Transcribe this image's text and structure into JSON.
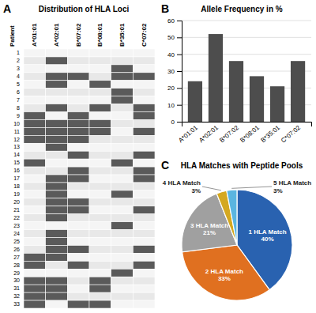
{
  "chart_data": [
    {
      "type": "heatmap",
      "title": "Distribution of HLA Loci",
      "annotations": [
        "A"
      ],
      "categories": [
        "A*01:01",
        "A*02:01",
        "B*07:02",
        "B*08:01",
        "B*35:01",
        "C*07:02"
      ],
      "ylabel": "Patient",
      "rows": [
        "1",
        "2",
        "3",
        "4",
        "5",
        "6",
        "7",
        "8",
        "9",
        "10",
        "11",
        "12",
        "13",
        "14",
        "15",
        "16",
        "17",
        "18",
        "19",
        "20",
        "21",
        "22",
        "23",
        "24",
        "25",
        "26",
        "27",
        "28",
        "29",
        "30",
        "31",
        "32",
        "33"
      ],
      "cells": [
        [
          0,
          0,
          0,
          0,
          0,
          0
        ],
        [
          0,
          1,
          0,
          0,
          0,
          0
        ],
        [
          0,
          0,
          0,
          0,
          1,
          0
        ],
        [
          0,
          1,
          1,
          0,
          1,
          1
        ],
        [
          0,
          1,
          0,
          1,
          0,
          0
        ],
        [
          0,
          0,
          0,
          0,
          1,
          0
        ],
        [
          0,
          0,
          0,
          0,
          1,
          0
        ],
        [
          0,
          1,
          0,
          1,
          0,
          1
        ],
        [
          1,
          0,
          1,
          0,
          0,
          1
        ],
        [
          1,
          1,
          1,
          1,
          0,
          0
        ],
        [
          1,
          1,
          1,
          1,
          0,
          1
        ],
        [
          1,
          1,
          1,
          0,
          0,
          0
        ],
        [
          0,
          1,
          0,
          0,
          0,
          0
        ],
        [
          0,
          0,
          1,
          0,
          0,
          1
        ],
        [
          1,
          0,
          0,
          0,
          1,
          0
        ],
        [
          0,
          0,
          1,
          0,
          0,
          1
        ],
        [
          0,
          1,
          1,
          0,
          0,
          1
        ],
        [
          0,
          1,
          0,
          0,
          0,
          0
        ],
        [
          0,
          1,
          0,
          0,
          1,
          0
        ],
        [
          0,
          1,
          1,
          0,
          0,
          0
        ],
        [
          0,
          1,
          1,
          0,
          0,
          1
        ],
        [
          0,
          1,
          0,
          0,
          0,
          0
        ],
        [
          0,
          0,
          0,
          0,
          1,
          0
        ],
        [
          0,
          1,
          0,
          0,
          0,
          0
        ],
        [
          0,
          1,
          0,
          0,
          0,
          0
        ],
        [
          0,
          1,
          1,
          0,
          0,
          1
        ],
        [
          1,
          1,
          0,
          0,
          0,
          0
        ],
        [
          1,
          0,
          1,
          0,
          0,
          1
        ],
        [
          0,
          0,
          0,
          0,
          1,
          0
        ],
        [
          1,
          1,
          0,
          1,
          0,
          0
        ],
        [
          1,
          1,
          0,
          1,
          0,
          0
        ],
        [
          1,
          1,
          0,
          0,
          0,
          0
        ],
        [
          1,
          0,
          1,
          1,
          0,
          0
        ]
      ],
      "color": "#5a5a5a"
    },
    {
      "type": "bar",
      "title": "Allele Frequency in %",
      "annotations": [
        "B"
      ],
      "categories": [
        "A*01:01",
        "A*02:01",
        "B*07:02",
        "B*08:01",
        "B*35:01",
        "C*07:02"
      ],
      "values": [
        24,
        52,
        36,
        27,
        21,
        36
      ],
      "color": "#4d4d4d",
      "ylim": [
        0,
        60
      ],
      "yticks": [
        0,
        10,
        20,
        30,
        40,
        50,
        60
      ],
      "grid": true
    },
    {
      "type": "pie",
      "title": "HLA Matches with Peptide Pools",
      "annotations": [
        "C"
      ],
      "categories": [
        "1 HLA Match",
        "2 HLA Match",
        "3 HLA Match",
        "4 HLA Match",
        "5 HLA Match"
      ],
      "values": [
        40,
        33,
        21,
        3,
        3
      ],
      "value_labels": [
        "40%",
        "33%",
        "21%",
        "3%",
        "3%"
      ],
      "colors": [
        "#2962b0",
        "#e07020",
        "#a0a0a0",
        "#d4a820",
        "#5ab5e0"
      ],
      "data_labels": true
    }
  ]
}
